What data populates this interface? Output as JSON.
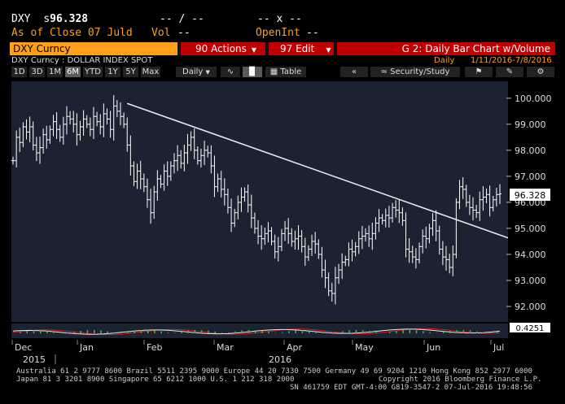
{
  "header": {
    "ticker": "DXY",
    "s_label": "s",
    "price": "96.328",
    "change": "-- / --",
    "x_label": "-- x --",
    "asof": "As of Close 07 Juld",
    "vol_label": "Vol",
    "vol_value": "--",
    "openint_label": "OpenInt",
    "openint_value": "--"
  },
  "toolbar": {
    "security": "DXY Curncy",
    "actions": "90 Actions",
    "edit": "97 Edit",
    "chart_title": "G 2: Daily Bar Chart w/Volume",
    "freq": "Daily",
    "range": "1/11/2016-7/8/2016"
  },
  "subtitle": "DXY Curncy : DOLLAR INDEX SPOT",
  "periods": [
    "1D",
    "3D",
    "1M",
    "6M",
    "YTD",
    "1Y",
    "5Y",
    "Max"
  ],
  "selected_period": "6M",
  "controls": {
    "interval": "Daily",
    "table": "Table",
    "security_study": "Security/Study"
  },
  "colors": {
    "accent": "#ff9f1a",
    "bar_red": "#c00000",
    "plot_bg": "#1b2332",
    "bars": "#ffffff",
    "trendline": "#ffffff"
  },
  "chart_data": {
    "type": "bar",
    "y_ticks": [
      "100.000",
      "99.000",
      "98.000",
      "97.000",
      "96.000",
      "95.000",
      "94.000",
      "93.000",
      "92.000"
    ],
    "ylim": [
      91.5,
      100.4
    ],
    "x_labels": [
      "Dec",
      "Jan",
      "Feb",
      "Mar",
      "Apr",
      "May",
      "Jun",
      "Jul"
    ],
    "year_labels": [
      "2015",
      "2016"
    ],
    "last_value_label": "96.328",
    "indicator_label": "0.4251",
    "closes": [
      97.6,
      98.5,
      98.3,
      98.9,
      98.7,
      98.9,
      98.2,
      97.9,
      98.1,
      98.6,
      98.4,
      98.8,
      99.1,
      98.8,
      98.5,
      99.0,
      99.3,
      99.2,
      99.0,
      98.6,
      98.9,
      99.2,
      99.0,
      98.8,
      99.3,
      99.1,
      98.9,
      99.4,
      99.2,
      98.8,
      99.7,
      99.5,
      99.3,
      99.0,
      98.2,
      97.4,
      96.8,
      97.2,
      96.9,
      96.6,
      96.1,
      95.6,
      96.4,
      96.9,
      96.7,
      97.2,
      97.0,
      97.4,
      97.6,
      97.8,
      97.5,
      97.9,
      98.2,
      98.5,
      98.0,
      97.6,
      97.8,
      98.0,
      97.9,
      97.4,
      96.6,
      96.9,
      96.5,
      96.3,
      95.8,
      95.2,
      95.6,
      96.0,
      96.2,
      96.4,
      95.9,
      95.4,
      95.0,
      94.7,
      94.6,
      94.8,
      94.9,
      94.5,
      94.1,
      94.3,
      94.8,
      95.0,
      94.8,
      94.5,
      94.6,
      94.7,
      94.3,
      93.9,
      94.2,
      94.5,
      94.4,
      94.0,
      93.4,
      93.1,
      92.6,
      92.5,
      93.1,
      93.4,
      93.7,
      93.8,
      94.2,
      94.1,
      94.3,
      94.6,
      94.7,
      94.8,
      94.6,
      94.8,
      95.2,
      95.4,
      95.3,
      95.5,
      95.4,
      95.8,
      95.7,
      95.6,
      95.3,
      94.2,
      94.1,
      93.9,
      93.8,
      94.3,
      94.7,
      94.6,
      95.0,
      95.3,
      94.9,
      94.2,
      93.9,
      93.8,
      93.5,
      94.0,
      96.0,
      96.6,
      96.5,
      96.0,
      95.8,
      95.7,
      95.6,
      96.1,
      96.2,
      96.3,
      95.8,
      96.1,
      96.3,
      96.328
    ],
    "trendline": [
      [
        34,
        99.8
      ],
      [
        146,
        94.7
      ]
    ]
  },
  "footer": {
    "line1": "Australia 61 2 9777 8600 Brazil 5511 2395 9000 Europe 44 20 7330 7500 Germany 49 69 9204 1210 Hong Kong 852 2977 6000",
    "line2a": "Japan 81 3 3201 8900          Singapore 65 6212 1000          U.S. 1 212 318 2000",
    "line2b": "Copyright 2016 Bloomberg Finance L.P.",
    "line3": "SN 461759 EDT  GMT-4:00 G819-3547-2 07-Jul-2016 19:48:56"
  }
}
